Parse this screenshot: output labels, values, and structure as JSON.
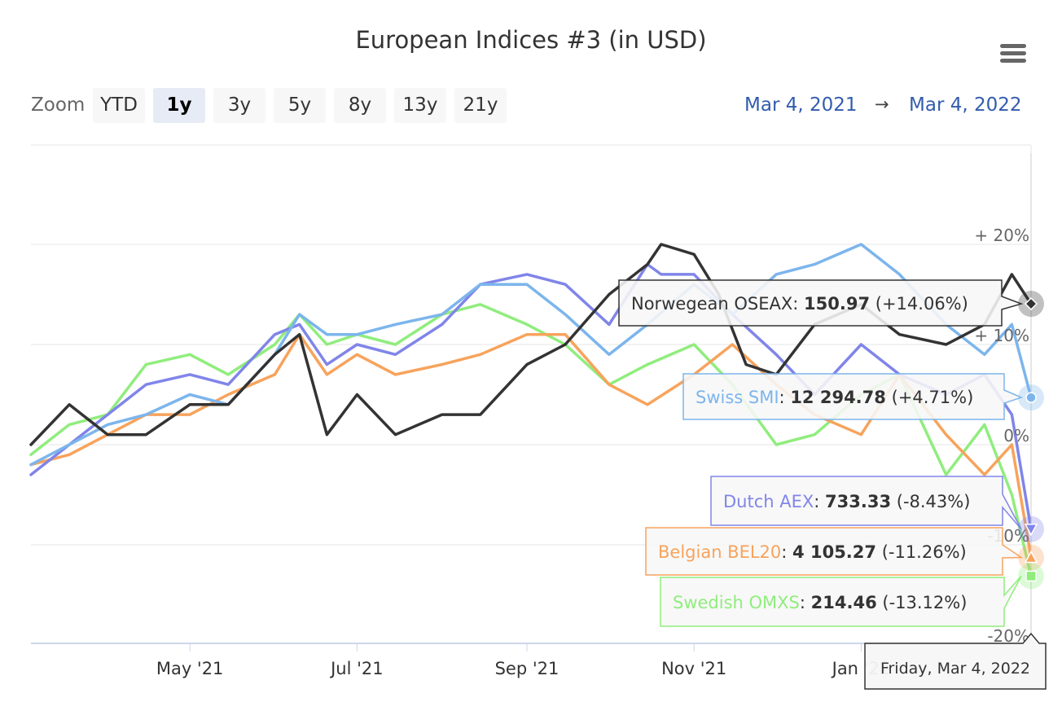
{
  "title": "European Indices #3 (in USD)",
  "menu_icon": "hamburger-menu-icon",
  "zoom": {
    "label": "Zoom",
    "buttons": [
      "YTD",
      "1y",
      "3y",
      "5y",
      "8y",
      "13y",
      "21y"
    ],
    "selected": "1y"
  },
  "range": {
    "from": "Mar 4, 2021",
    "arrow": "→",
    "to": "Mar 4, 2022"
  },
  "tooltip_date": "Friday, Mar 4, 2022",
  "chart_data": {
    "type": "line",
    "title": "European Indices #3 (in USD)",
    "x_start": "2021-03-04",
    "x_end": "2022-03-04",
    "x_ticks": [
      "May '21",
      "Jul '21",
      "Sep '21",
      "Nov '21",
      "Jan '22"
    ],
    "y_ticks": [
      "+ 20%",
      "+ 10%",
      "0%",
      "-10%",
      "-20%"
    ],
    "y_unit": "%",
    "ylim": [
      -20,
      25
    ],
    "grid": true,
    "series": [
      {
        "name": "Norwegean OSEAX",
        "color": "#333333",
        "value": "150.97",
        "change": "(+14.06%)",
        "x": [
          "2021-03-04",
          "2021-03-18",
          "2021-04-01",
          "2021-04-15",
          "2021-05-01",
          "2021-05-15",
          "2021-06-01",
          "2021-06-10",
          "2021-06-20",
          "2021-07-01",
          "2021-07-15",
          "2021-08-01",
          "2021-08-15",
          "2021-09-01",
          "2021-09-15",
          "2021-10-01",
          "2021-10-15",
          "2021-10-20",
          "2021-11-01",
          "2021-11-10",
          "2021-11-20",
          "2021-12-01",
          "2021-12-15",
          "2022-01-01",
          "2022-01-15",
          "2022-02-01",
          "2022-02-15",
          "2022-02-25",
          "2022-03-04"
        ],
        "y": [
          0,
          4,
          1,
          1,
          4,
          4,
          9,
          11,
          1,
          5,
          1,
          3,
          3,
          8,
          10,
          15,
          18,
          20,
          19,
          15,
          8,
          7,
          12,
          14,
          11,
          10,
          12,
          17,
          14.06
        ]
      },
      {
        "name": "Swiss SMI",
        "color": "#7cb5ec",
        "value": "12 294.78",
        "change": "(+4.71%)",
        "x": [
          "2021-03-04",
          "2021-03-18",
          "2021-04-01",
          "2021-04-15",
          "2021-05-01",
          "2021-05-15",
          "2021-06-01",
          "2021-06-10",
          "2021-06-20",
          "2021-07-01",
          "2021-07-15",
          "2021-08-01",
          "2021-08-15",
          "2021-09-01",
          "2021-09-15",
          "2021-10-01",
          "2021-10-15",
          "2021-11-01",
          "2021-11-15",
          "2021-12-01",
          "2021-12-15",
          "2022-01-01",
          "2022-01-15",
          "2022-02-01",
          "2022-02-15",
          "2022-02-25",
          "2022-03-04"
        ],
        "y": [
          -2,
          0,
          2,
          3,
          5,
          4,
          9,
          13,
          11,
          11,
          12,
          13,
          16,
          16,
          13,
          9,
          12,
          16,
          13,
          17,
          18,
          20,
          17,
          12,
          9,
          12,
          4.71
        ]
      },
      {
        "name": "Dutch AEX",
        "color": "#8085e9",
        "value": "733.33",
        "change": "(-8.43%)",
        "x": [
          "2021-03-04",
          "2021-03-18",
          "2021-04-01",
          "2021-04-15",
          "2021-05-01",
          "2021-05-15",
          "2021-06-01",
          "2021-06-10",
          "2021-06-20",
          "2021-07-01",
          "2021-07-15",
          "2021-08-01",
          "2021-08-15",
          "2021-09-01",
          "2021-09-15",
          "2021-10-01",
          "2021-10-15",
          "2021-10-20",
          "2021-11-01",
          "2021-11-15",
          "2021-12-01",
          "2021-12-15",
          "2022-01-01",
          "2022-01-15",
          "2022-02-01",
          "2022-02-15",
          "2022-02-25",
          "2022-03-04"
        ],
        "y": [
          -3,
          0,
          3,
          6,
          7,
          6,
          11,
          12,
          8,
          10,
          9,
          12,
          16,
          17,
          16,
          12,
          18,
          17,
          17,
          13,
          9,
          5,
          10,
          7,
          5,
          7,
          3,
          -8.43
        ]
      },
      {
        "name": "Belgian BEL20",
        "color": "#f7a35c",
        "value": "4 105.27",
        "change": "(-11.26%)",
        "x": [
          "2021-03-04",
          "2021-03-18",
          "2021-04-01",
          "2021-04-15",
          "2021-05-01",
          "2021-05-15",
          "2021-06-01",
          "2021-06-10",
          "2021-06-20",
          "2021-07-01",
          "2021-07-15",
          "2021-08-01",
          "2021-08-15",
          "2021-09-01",
          "2021-09-15",
          "2021-10-01",
          "2021-10-15",
          "2021-11-01",
          "2021-11-15",
          "2021-12-01",
          "2021-12-15",
          "2022-01-01",
          "2022-01-15",
          "2022-02-01",
          "2022-02-15",
          "2022-02-25",
          "2022-03-04"
        ],
        "y": [
          -2,
          -1,
          1,
          3,
          3,
          5,
          7,
          11,
          7,
          9,
          7,
          8,
          9,
          11,
          11,
          6,
          4,
          7,
          10,
          6,
          3,
          1,
          7,
          1,
          -3,
          0,
          -11.26
        ]
      },
      {
        "name": "Swedish OMXS",
        "color": "#90ed7d",
        "value": "214.46",
        "change": "(-13.12%)",
        "x": [
          "2021-03-04",
          "2021-03-18",
          "2021-04-01",
          "2021-04-15",
          "2021-05-01",
          "2021-05-15",
          "2021-06-01",
          "2021-06-10",
          "2021-06-20",
          "2021-07-01",
          "2021-07-15",
          "2021-08-01",
          "2021-08-15",
          "2021-09-01",
          "2021-09-15",
          "2021-10-01",
          "2021-10-15",
          "2021-11-01",
          "2021-11-15",
          "2021-12-01",
          "2021-12-15",
          "2022-01-01",
          "2022-01-15",
          "2022-02-01",
          "2022-02-15",
          "2022-02-25",
          "2022-03-04"
        ],
        "y": [
          -1,
          2,
          3,
          8,
          9,
          7,
          10,
          13,
          10,
          11,
          10,
          13,
          14,
          12,
          10,
          6,
          8,
          10,
          6,
          0,
          1,
          5,
          7,
          -3,
          2,
          -5,
          -13.12
        ]
      }
    ]
  }
}
